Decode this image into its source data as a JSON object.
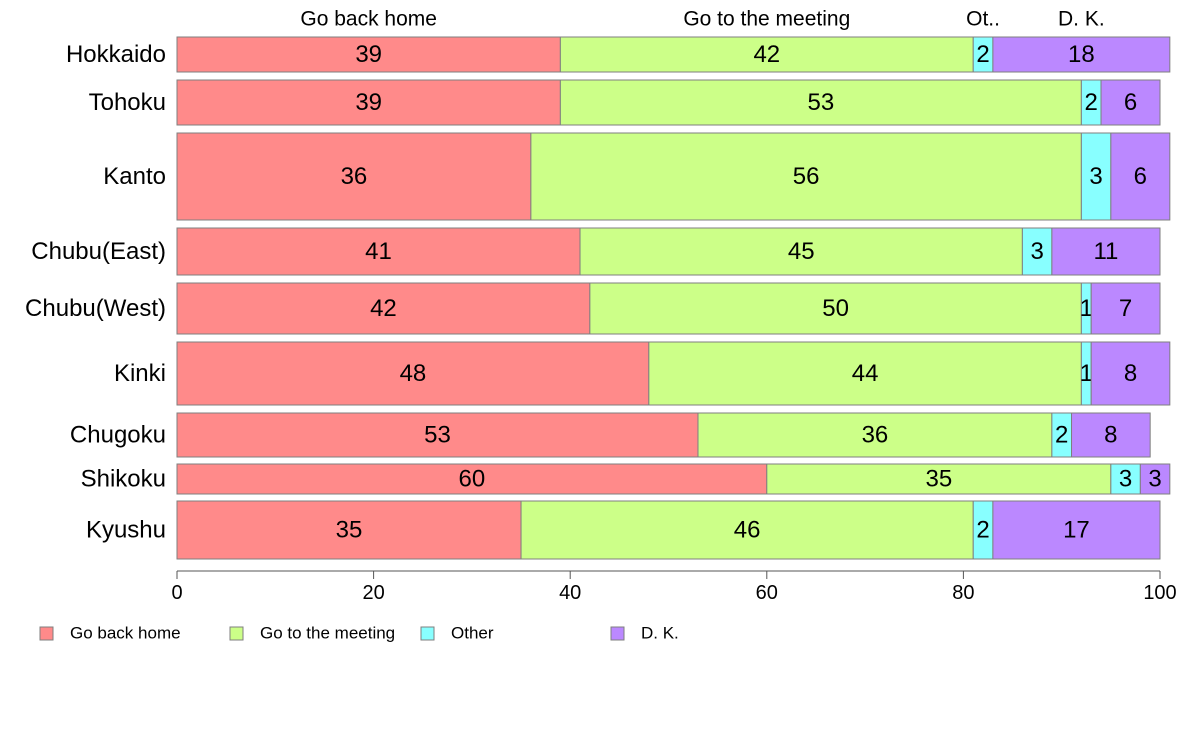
{
  "chart_data": {
    "type": "bar",
    "orientation": "horizontal",
    "stacked": true,
    "categories": [
      "Hokkaido",
      "Tohoku",
      "Kanto",
      "Chubu(East)",
      "Chubu(West)",
      "Kinki",
      "Chugoku",
      "Shikoku",
      "Kyushu"
    ],
    "series": [
      {
        "name": "Go back home",
        "color": "#ff8a8a",
        "values": [
          39,
          39,
          36,
          41,
          42,
          48,
          53,
          60,
          35
        ]
      },
      {
        "name": "Go to the meeting",
        "color": "#ccff88",
        "values": [
          42,
          53,
          56,
          45,
          50,
          44,
          36,
          35,
          46
        ]
      },
      {
        "name": "Other",
        "color": "#88ffff",
        "values": [
          2,
          2,
          3,
          3,
          1,
          1,
          2,
          3,
          2
        ]
      },
      {
        "name": "D. K.",
        "color": "#bb88ff",
        "values": [
          18,
          6,
          6,
          11,
          7,
          8,
          8,
          3,
          17
        ]
      }
    ],
    "top_labels": [
      "Go back home",
      "Go to the meeting",
      "Ot..",
      "D. K."
    ],
    "xlim": [
      0,
      100
    ],
    "xticks": [
      0,
      20,
      40,
      60,
      80,
      100
    ],
    "xtick_labels": [
      "0",
      "20",
      "40",
      "60",
      "80",
      "100"
    ],
    "xlabel": "",
    "ylabel": "",
    "title": "",
    "grid": false,
    "legend": {
      "position": "bottom-left",
      "labels": [
        "Go back home",
        "Go to the meeting",
        "Other",
        "D. K."
      ]
    }
  }
}
